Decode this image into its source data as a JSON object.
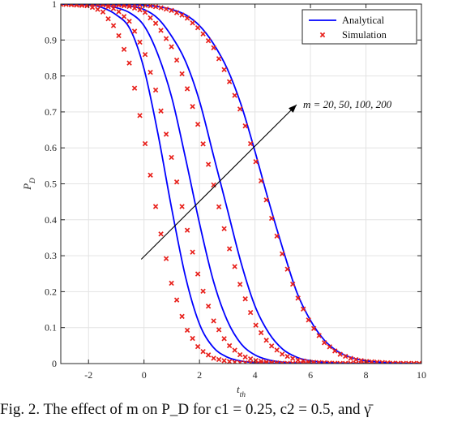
{
  "chart_data": {
    "type": "line",
    "xlabel": "t_th",
    "ylabel": "P_D",
    "xlim": [
      -3,
      10
    ],
    "ylim": [
      0,
      1
    ],
    "xticks": [
      "-2",
      "0",
      "2",
      "4",
      "6",
      "8",
      "10"
    ],
    "yticks": [
      "0",
      "0.1",
      "0.2",
      "0.3",
      "0.4",
      "0.5",
      "0.6",
      "0.7",
      "0.8",
      "0.9",
      "1"
    ],
    "grid": true,
    "legend_position": "top-right",
    "legend": [
      "Analytical",
      "Simulation"
    ],
    "colors": {
      "analytical": "#0000ff",
      "simulation": "#e8211c",
      "annotation": "#000000"
    },
    "annotation": {
      "text": "m = 20, 50, 100, 200",
      "arrow_from": [
        -0.1,
        0.29
      ],
      "arrow_to": [
        5.5,
        0.72
      ]
    },
    "series": [
      {
        "analytical": {
          "x": [
            -3,
            -2,
            -1.5,
            -1,
            -0.5,
            0,
            0.5,
            1,
            1.5,
            2,
            2.5,
            3,
            3.5,
            4,
            4.5,
            5,
            5.5,
            6,
            7,
            8,
            9,
            10
          ],
          "y": [
            1,
            0.998,
            0.99,
            0.97,
            0.93,
            0.82,
            0.64,
            0.43,
            0.24,
            0.11,
            0.045,
            0.018,
            0.007,
            0.003,
            0.001,
            0.0004,
            0.0002,
            0,
            0,
            0,
            0,
            0
          ]
        },
        "simulation": {
          "x": [
            -3,
            -2,
            -1.5,
            -1,
            -0.5,
            0,
            0.5,
            1,
            1.5,
            2,
            2.5,
            3,
            3.5,
            4,
            4.5,
            5,
            5.5,
            6,
            7,
            8,
            9,
            10
          ],
          "y": [
            1,
            0.995,
            0.98,
            0.93,
            0.83,
            0.63,
            0.4,
            0.22,
            0.1,
            0.04,
            0.015,
            0.006,
            0.002,
            0.001,
            0,
            0,
            0,
            0,
            0,
            0,
            0,
            0
          ]
        }
      },
      {
        "analytical": {
          "x": [
            -3,
            -2,
            -1.5,
            -1,
            -0.5,
            0,
            0.5,
            1,
            1.5,
            2,
            2.5,
            3,
            3.5,
            4,
            4.5,
            5,
            5.5,
            6,
            7,
            8,
            9,
            10
          ],
          "y": [
            1,
            1,
            0.998,
            0.99,
            0.975,
            0.94,
            0.86,
            0.74,
            0.57,
            0.39,
            0.23,
            0.12,
            0.055,
            0.024,
            0.01,
            0.004,
            0.0015,
            0.0006,
            0,
            0,
            0,
            0
          ]
        },
        "simulation": {
          "x": [
            -3,
            -2,
            -1.5,
            -1,
            -0.5,
            0,
            0.5,
            1,
            1.5,
            2,
            2.5,
            3,
            3.5,
            4,
            4.5,
            5,
            5.5,
            6,
            7,
            8,
            9,
            10
          ],
          "y": [
            1,
            1,
            0.998,
            0.985,
            0.95,
            0.87,
            0.74,
            0.57,
            0.39,
            0.23,
            0.12,
            0.055,
            0.022,
            0.009,
            0.003,
            0.001,
            0,
            0,
            0,
            0,
            0,
            0
          ]
        }
      },
      {
        "analytical": {
          "x": [
            -3,
            -2,
            -1.5,
            -1,
            -0.5,
            0,
            0.5,
            1,
            1.5,
            2,
            2.5,
            3,
            3.5,
            4,
            4.5,
            5,
            5.5,
            6,
            7,
            8,
            9,
            10
          ],
          "y": [
            1,
            1,
            1,
            0.998,
            0.994,
            0.985,
            0.96,
            0.91,
            0.84,
            0.73,
            0.58,
            0.43,
            0.28,
            0.16,
            0.085,
            0.04,
            0.018,
            0.008,
            0.0015,
            0,
            0,
            0
          ]
        },
        "simulation": {
          "x": [
            -3,
            -2,
            -1.5,
            -1,
            -0.5,
            0,
            0.5,
            1,
            1.5,
            2,
            2.5,
            3,
            3.5,
            4,
            4.5,
            5,
            5.5,
            6,
            7,
            8,
            9,
            10
          ],
          "y": [
            1,
            1,
            1,
            0.998,
            0.993,
            0.98,
            0.94,
            0.88,
            0.78,
            0.65,
            0.5,
            0.34,
            0.21,
            0.11,
            0.055,
            0.025,
            0.01,
            0.004,
            0.0005,
            0,
            0,
            0
          ]
        }
      },
      {
        "analytical": {
          "x": [
            -3,
            -2,
            -1.5,
            -1,
            -0.5,
            0,
            0.5,
            1,
            1.5,
            2,
            2.5,
            3,
            3.5,
            4,
            4.5,
            5,
            5.5,
            6,
            6.5,
            7,
            7.5,
            8,
            9,
            10
          ],
          "y": [
            1,
            1,
            1,
            1,
            0.999,
            0.997,
            0.993,
            0.985,
            0.97,
            0.94,
            0.89,
            0.82,
            0.72,
            0.59,
            0.45,
            0.32,
            0.2,
            0.12,
            0.065,
            0.033,
            0.016,
            0.008,
            0.0015,
            0
          ]
        },
        "simulation": {
          "x": [
            -3,
            -2,
            -1.5,
            -1,
            -0.5,
            0,
            0.5,
            1,
            1.5,
            2,
            2.5,
            3,
            3.5,
            4,
            4.5,
            5,
            5.5,
            6,
            6.5,
            7,
            7.5,
            8,
            9,
            10
          ],
          "y": [
            1,
            1,
            1,
            1,
            0.999,
            0.997,
            0.992,
            0.982,
            0.965,
            0.93,
            0.88,
            0.8,
            0.7,
            0.57,
            0.43,
            0.3,
            0.19,
            0.11,
            0.058,
            0.028,
            0.013,
            0.006,
            0.001,
            0
          ]
        }
      }
    ]
  },
  "caption": "Fig. 2.  The effect of m on P_D for c1 = 0.25, c2 = 0.5, and γ̄"
}
